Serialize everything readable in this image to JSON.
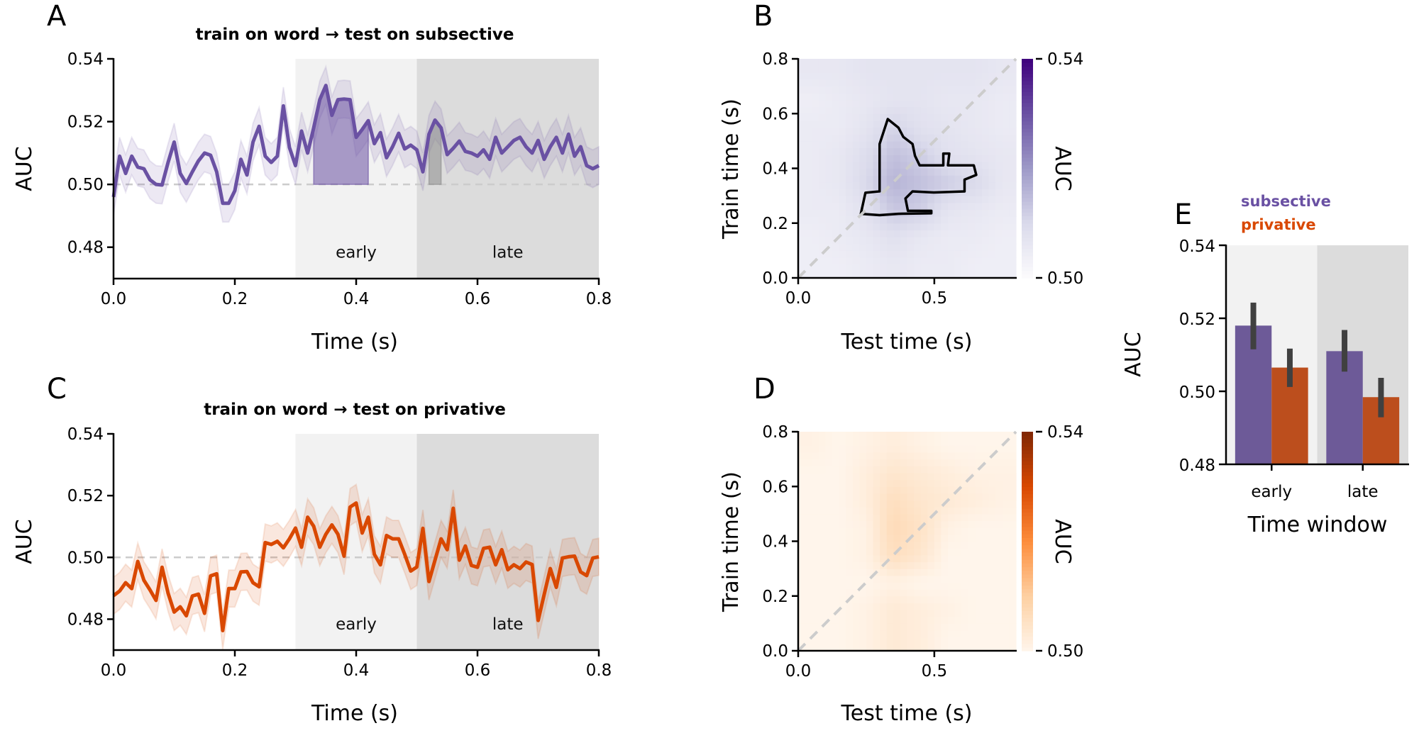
{
  "panels": {
    "A": {
      "letter": "A",
      "title": "train on word → test on subsective",
      "xlabel": "Time (s)",
      "ylabel": "AUC"
    },
    "B": {
      "letter": "B",
      "xlabel": "Test time (s)",
      "ylabel": "Train time (s)",
      "cbar_label": "AUC"
    },
    "C": {
      "letter": "C",
      "title": "train on word → test on privative",
      "xlabel": "Time (s)",
      "ylabel": "AUC"
    },
    "D": {
      "letter": "D",
      "xlabel": "Test time (s)",
      "ylabel": "Train time (s)",
      "cbar_label": "AUC"
    },
    "E": {
      "letter": "E",
      "xlabel": "Time window",
      "ylabel": "AUC",
      "legend": [
        "subsective",
        "privative"
      ]
    }
  },
  "colors": {
    "subsective": "#6a51a3",
    "privative": "#d94801",
    "subsective_bar": "#6d5a98",
    "privative_bar": "#bc4e1d",
    "early_window": "#f2f2f2",
    "late_window": "#dcdcdc",
    "chance_line": "#cccccc",
    "errorbar": "#404040"
  },
  "chart_data": [
    {
      "id": "A",
      "type": "line",
      "title": "train on word → test on subsective",
      "xlabel": "Time (s)",
      "ylabel": "AUC",
      "xlim": [
        0,
        0.8
      ],
      "ylim": [
        0.47,
        0.54
      ],
      "xticks": [
        "0.0",
        "0.2",
        "0.4",
        "0.6",
        "0.8"
      ],
      "yticks": [
        "0.48",
        "0.50",
        "0.52",
        "0.54"
      ],
      "x_start": 0.0,
      "x_step": 0.01,
      "chance": 0.5,
      "ci_half_width": 0.006,
      "windows": [
        {
          "label": "early",
          "range": [
            0.3,
            0.5
          ]
        },
        {
          "label": "late",
          "range": [
            0.5,
            0.8
          ]
        }
      ],
      "significant_clusters": [
        {
          "range": [
            0.33,
            0.42
          ],
          "color": "#6a51a3"
        },
        {
          "range": [
            0.52,
            0.54
          ],
          "color": "#8c8c8c"
        }
      ],
      "values": [
        0.496,
        0.509,
        0.5035,
        0.509,
        0.5055,
        0.505,
        0.5015,
        0.5,
        0.4998,
        0.507,
        0.5135,
        0.5035,
        0.5003,
        0.504,
        0.5075,
        0.51,
        0.5093,
        0.504,
        0.494,
        0.494,
        0.498,
        0.508,
        0.503,
        0.5135,
        0.5185,
        0.509,
        0.507,
        0.509,
        0.525,
        0.5118,
        0.506,
        0.517,
        0.51,
        0.518,
        0.527,
        0.5315,
        0.522,
        0.527,
        0.5272,
        0.527,
        0.515,
        0.5175,
        0.5203,
        0.513,
        0.5165,
        0.5085,
        0.512,
        0.5163,
        0.5113,
        0.5125,
        0.511,
        0.504,
        0.516,
        0.5205,
        0.518,
        0.5095,
        0.5115,
        0.5138,
        0.5105,
        0.51,
        0.509,
        0.511,
        0.508,
        0.515,
        0.51,
        0.512,
        0.514,
        0.515,
        0.512,
        0.51,
        0.514,
        0.508,
        0.512,
        0.515,
        0.51,
        0.516,
        0.509,
        0.512,
        0.506,
        0.505,
        0.506
      ]
    },
    {
      "id": "C",
      "type": "line",
      "title": "train on word → test on privative",
      "xlabel": "Time (s)",
      "ylabel": "AUC",
      "xlim": [
        0,
        0.8
      ],
      "ylim": [
        0.47,
        0.54
      ],
      "xticks": [
        "0.0",
        "0.2",
        "0.4",
        "0.6",
        "0.8"
      ],
      "yticks": [
        "0.48",
        "0.50",
        "0.52",
        "0.54"
      ],
      "x_start": 0.0,
      "x_step": 0.01,
      "chance": 0.5,
      "ci_half_width": 0.006,
      "windows": [
        {
          "label": "early",
          "range": [
            0.3,
            0.5
          ]
        },
        {
          "label": "late",
          "range": [
            0.5,
            0.8
          ]
        }
      ],
      "values": [
        0.4876,
        0.4891,
        0.4918,
        0.4899,
        0.4987,
        0.4926,
        0.4895,
        0.4861,
        0.4968,
        0.4884,
        0.4823,
        0.484,
        0.4811,
        0.4875,
        0.4881,
        0.4819,
        0.494,
        0.4947,
        0.4763,
        0.4899,
        0.4899,
        0.4953,
        0.4954,
        0.4918,
        0.4905,
        0.5048,
        0.5042,
        0.5052,
        0.5031,
        0.506,
        0.5095,
        0.5033,
        0.513,
        0.5101,
        0.5033,
        0.5075,
        0.5105,
        0.5075,
        0.5004,
        0.5163,
        0.5176,
        0.5079,
        0.513,
        0.501,
        0.4976,
        0.5071,
        0.506,
        0.506,
        0.501,
        0.4956,
        0.4969,
        0.5094,
        0.4922,
        0.4991,
        0.506,
        0.5025,
        0.5159,
        0.4991,
        0.5037,
        0.4974,
        0.4968,
        0.5029,
        0.5033,
        0.4976,
        0.5025,
        0.496,
        0.4976,
        0.4964,
        0.4985,
        0.4977,
        0.4796,
        0.488,
        0.4964,
        0.4903,
        0.4998,
        0.5002,
        0.5004,
        0.4953,
        0.4941,
        0.4998,
        0.5002
      ]
    },
    {
      "id": "B",
      "type": "heatmap",
      "xlabel": "Test time (s)",
      "ylabel": "Train time (s)",
      "xlim": [
        0,
        0.8
      ],
      "ylim": [
        0,
        0.8
      ],
      "xticks": [
        "0.0",
        "0.5"
      ],
      "yticks": [
        "0.0",
        "0.2",
        "0.4",
        "0.6",
        "0.8"
      ],
      "colormap": "Purples",
      "vmin": 0.5,
      "vmax": 0.54,
      "colorbar_ticks": [
        "0.50",
        "0.54"
      ],
      "colorbar_label": "AUC",
      "diagonal": true,
      "grid_bin_width": 0.1,
      "rows_train_time_ascending": [
        [
          0.504,
          0.504,
          0.505,
          0.506,
          0.505,
          0.505,
          0.504,
          0.504
        ],
        [
          0.504,
          0.505,
          0.506,
          0.508,
          0.506,
          0.505,
          0.505,
          0.504
        ],
        [
          0.505,
          0.505,
          0.508,
          0.513,
          0.512,
          0.507,
          0.506,
          0.505
        ],
        [
          0.505,
          0.506,
          0.51,
          0.516,
          0.514,
          0.512,
          0.51,
          0.506
        ],
        [
          0.505,
          0.506,
          0.509,
          0.514,
          0.512,
          0.508,
          0.507,
          0.506
        ],
        [
          0.505,
          0.505,
          0.507,
          0.511,
          0.508,
          0.507,
          0.506,
          0.505
        ],
        [
          0.504,
          0.505,
          0.506,
          0.507,
          0.507,
          0.506,
          0.506,
          0.505
        ],
        [
          0.506,
          0.506,
          0.507,
          0.507,
          0.507,
          0.507,
          0.507,
          0.506
        ]
      ],
      "significance_contour": [
        [
          0.23,
          0.234
        ],
        [
          0.247,
          0.311
        ],
        [
          0.299,
          0.316
        ],
        [
          0.299,
          0.489
        ],
        [
          0.329,
          0.58
        ],
        [
          0.368,
          0.549
        ],
        [
          0.386,
          0.515
        ],
        [
          0.42,
          0.489
        ],
        [
          0.429,
          0.446
        ],
        [
          0.446,
          0.411
        ],
        [
          0.533,
          0.411
        ],
        [
          0.533,
          0.454
        ],
        [
          0.555,
          0.454
        ],
        [
          0.55,
          0.411
        ],
        [
          0.645,
          0.411
        ],
        [
          0.654,
          0.376
        ],
        [
          0.611,
          0.359
        ],
        [
          0.611,
          0.316
        ],
        [
          0.498,
          0.312
        ],
        [
          0.42,
          0.316
        ],
        [
          0.394,
          0.29
        ],
        [
          0.403,
          0.245
        ],
        [
          0.489,
          0.245
        ],
        [
          0.489,
          0.236
        ],
        [
          0.368,
          0.234
        ],
        [
          0.299,
          0.229
        ]
      ]
    },
    {
      "id": "D",
      "type": "heatmap",
      "xlabel": "Test time (s)",
      "ylabel": "Train time (s)",
      "xlim": [
        0,
        0.8
      ],
      "ylim": [
        0,
        0.8
      ],
      "xticks": [
        "0.0",
        "0.5"
      ],
      "yticks": [
        "0.0",
        "0.2",
        "0.4",
        "0.6",
        "0.8"
      ],
      "colormap": "Oranges",
      "vmin": 0.5,
      "vmax": 0.54,
      "colorbar_ticks": [
        "0.50",
        "0.54"
      ],
      "colorbar_label": "AUC",
      "diagonal": true,
      "grid_bin_width": 0.1,
      "rows_train_time_ascending": [
        [
          0.5,
          0.5,
          0.501,
          0.503,
          0.502,
          0.5,
          0.5,
          0.5
        ],
        [
          0.5,
          0.5,
          0.501,
          0.503,
          0.502,
          0.501,
          0.5,
          0.5
        ],
        [
          0.5,
          0.5,
          0.5,
          0.501,
          0.5,
          0.5,
          0.5,
          0.5
        ],
        [
          0.5,
          0.5,
          0.501,
          0.506,
          0.504,
          0.5,
          0.5,
          0.5
        ],
        [
          0.5,
          0.5,
          0.501,
          0.507,
          0.505,
          0.501,
          0.5,
          0.5
        ],
        [
          0.5,
          0.5,
          0.502,
          0.506,
          0.504,
          0.503,
          0.502,
          0.501
        ],
        [
          0.5,
          0.5,
          0.502,
          0.504,
          0.503,
          0.502,
          0.501,
          0.501
        ],
        [
          0.501,
          0.5,
          0.501,
          0.502,
          0.501,
          0.5,
          0.5,
          0.5
        ]
      ]
    },
    {
      "id": "E",
      "type": "bar",
      "xlabel": "Time window",
      "ylabel": "AUC",
      "categories": [
        "early",
        "late"
      ],
      "ylim": [
        0.48,
        0.54
      ],
      "yticks": [
        "0.48",
        "0.50",
        "0.52",
        "0.54"
      ],
      "legend_placement": "top-left",
      "series": [
        {
          "name": "subsective",
          "values": [
            0.518,
            0.511
          ],
          "ci_low": [
            0.5115,
            0.5054
          ],
          "ci_high": [
            0.5243,
            0.5168
          ]
        },
        {
          "name": "privative",
          "values": [
            0.5065,
            0.4984
          ],
          "ci_low": [
            0.5012,
            0.4929
          ],
          "ci_high": [
            0.5117,
            0.5037
          ]
        }
      ]
    }
  ]
}
